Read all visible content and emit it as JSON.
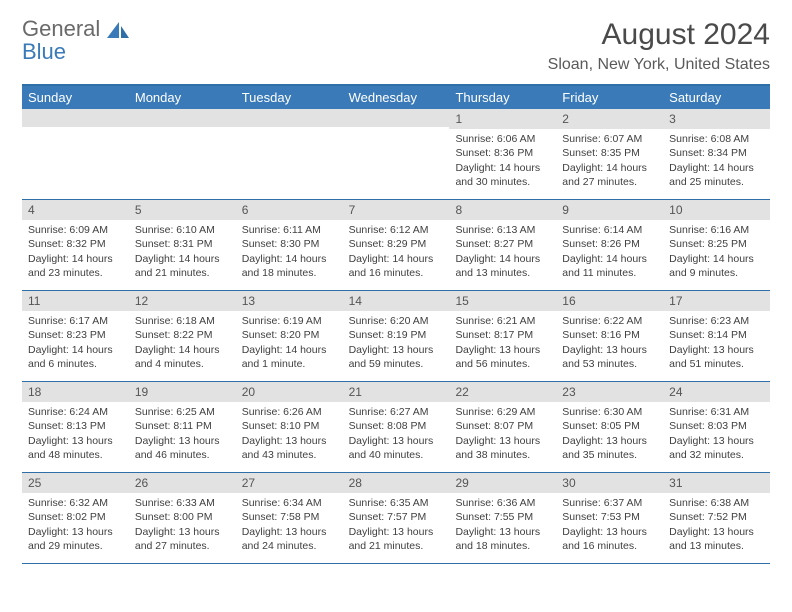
{
  "logo": {
    "general": "General",
    "blue": "Blue"
  },
  "title": "August 2024",
  "location": "Sloan, New York, United States",
  "colors": {
    "header_bg": "#3a7ab8",
    "header_text": "#ffffff",
    "border": "#2f6fa8",
    "daynum_bg": "#e2e2e2",
    "text": "#404040"
  },
  "day_headers": [
    "Sunday",
    "Monday",
    "Tuesday",
    "Wednesday",
    "Thursday",
    "Friday",
    "Saturday"
  ],
  "weeks": [
    [
      {
        "n": "",
        "sr": "",
        "ss": "",
        "dl": ""
      },
      {
        "n": "",
        "sr": "",
        "ss": "",
        "dl": ""
      },
      {
        "n": "",
        "sr": "",
        "ss": "",
        "dl": ""
      },
      {
        "n": "",
        "sr": "",
        "ss": "",
        "dl": ""
      },
      {
        "n": "1",
        "sr": "Sunrise: 6:06 AM",
        "ss": "Sunset: 8:36 PM",
        "dl": "Daylight: 14 hours and 30 minutes."
      },
      {
        "n": "2",
        "sr": "Sunrise: 6:07 AM",
        "ss": "Sunset: 8:35 PM",
        "dl": "Daylight: 14 hours and 27 minutes."
      },
      {
        "n": "3",
        "sr": "Sunrise: 6:08 AM",
        "ss": "Sunset: 8:34 PM",
        "dl": "Daylight: 14 hours and 25 minutes."
      }
    ],
    [
      {
        "n": "4",
        "sr": "Sunrise: 6:09 AM",
        "ss": "Sunset: 8:32 PM",
        "dl": "Daylight: 14 hours and 23 minutes."
      },
      {
        "n": "5",
        "sr": "Sunrise: 6:10 AM",
        "ss": "Sunset: 8:31 PM",
        "dl": "Daylight: 14 hours and 21 minutes."
      },
      {
        "n": "6",
        "sr": "Sunrise: 6:11 AM",
        "ss": "Sunset: 8:30 PM",
        "dl": "Daylight: 14 hours and 18 minutes."
      },
      {
        "n": "7",
        "sr": "Sunrise: 6:12 AM",
        "ss": "Sunset: 8:29 PM",
        "dl": "Daylight: 14 hours and 16 minutes."
      },
      {
        "n": "8",
        "sr": "Sunrise: 6:13 AM",
        "ss": "Sunset: 8:27 PM",
        "dl": "Daylight: 14 hours and 13 minutes."
      },
      {
        "n": "9",
        "sr": "Sunrise: 6:14 AM",
        "ss": "Sunset: 8:26 PM",
        "dl": "Daylight: 14 hours and 11 minutes."
      },
      {
        "n": "10",
        "sr": "Sunrise: 6:16 AM",
        "ss": "Sunset: 8:25 PM",
        "dl": "Daylight: 14 hours and 9 minutes."
      }
    ],
    [
      {
        "n": "11",
        "sr": "Sunrise: 6:17 AM",
        "ss": "Sunset: 8:23 PM",
        "dl": "Daylight: 14 hours and 6 minutes."
      },
      {
        "n": "12",
        "sr": "Sunrise: 6:18 AM",
        "ss": "Sunset: 8:22 PM",
        "dl": "Daylight: 14 hours and 4 minutes."
      },
      {
        "n": "13",
        "sr": "Sunrise: 6:19 AM",
        "ss": "Sunset: 8:20 PM",
        "dl": "Daylight: 14 hours and 1 minute."
      },
      {
        "n": "14",
        "sr": "Sunrise: 6:20 AM",
        "ss": "Sunset: 8:19 PM",
        "dl": "Daylight: 13 hours and 59 minutes."
      },
      {
        "n": "15",
        "sr": "Sunrise: 6:21 AM",
        "ss": "Sunset: 8:17 PM",
        "dl": "Daylight: 13 hours and 56 minutes."
      },
      {
        "n": "16",
        "sr": "Sunrise: 6:22 AM",
        "ss": "Sunset: 8:16 PM",
        "dl": "Daylight: 13 hours and 53 minutes."
      },
      {
        "n": "17",
        "sr": "Sunrise: 6:23 AM",
        "ss": "Sunset: 8:14 PM",
        "dl": "Daylight: 13 hours and 51 minutes."
      }
    ],
    [
      {
        "n": "18",
        "sr": "Sunrise: 6:24 AM",
        "ss": "Sunset: 8:13 PM",
        "dl": "Daylight: 13 hours and 48 minutes."
      },
      {
        "n": "19",
        "sr": "Sunrise: 6:25 AM",
        "ss": "Sunset: 8:11 PM",
        "dl": "Daylight: 13 hours and 46 minutes."
      },
      {
        "n": "20",
        "sr": "Sunrise: 6:26 AM",
        "ss": "Sunset: 8:10 PM",
        "dl": "Daylight: 13 hours and 43 minutes."
      },
      {
        "n": "21",
        "sr": "Sunrise: 6:27 AM",
        "ss": "Sunset: 8:08 PM",
        "dl": "Daylight: 13 hours and 40 minutes."
      },
      {
        "n": "22",
        "sr": "Sunrise: 6:29 AM",
        "ss": "Sunset: 8:07 PM",
        "dl": "Daylight: 13 hours and 38 minutes."
      },
      {
        "n": "23",
        "sr": "Sunrise: 6:30 AM",
        "ss": "Sunset: 8:05 PM",
        "dl": "Daylight: 13 hours and 35 minutes."
      },
      {
        "n": "24",
        "sr": "Sunrise: 6:31 AM",
        "ss": "Sunset: 8:03 PM",
        "dl": "Daylight: 13 hours and 32 minutes."
      }
    ],
    [
      {
        "n": "25",
        "sr": "Sunrise: 6:32 AM",
        "ss": "Sunset: 8:02 PM",
        "dl": "Daylight: 13 hours and 29 minutes."
      },
      {
        "n": "26",
        "sr": "Sunrise: 6:33 AM",
        "ss": "Sunset: 8:00 PM",
        "dl": "Daylight: 13 hours and 27 minutes."
      },
      {
        "n": "27",
        "sr": "Sunrise: 6:34 AM",
        "ss": "Sunset: 7:58 PM",
        "dl": "Daylight: 13 hours and 24 minutes."
      },
      {
        "n": "28",
        "sr": "Sunrise: 6:35 AM",
        "ss": "Sunset: 7:57 PM",
        "dl": "Daylight: 13 hours and 21 minutes."
      },
      {
        "n": "29",
        "sr": "Sunrise: 6:36 AM",
        "ss": "Sunset: 7:55 PM",
        "dl": "Daylight: 13 hours and 18 minutes."
      },
      {
        "n": "30",
        "sr": "Sunrise: 6:37 AM",
        "ss": "Sunset: 7:53 PM",
        "dl": "Daylight: 13 hours and 16 minutes."
      },
      {
        "n": "31",
        "sr": "Sunrise: 6:38 AM",
        "ss": "Sunset: 7:52 PM",
        "dl": "Daylight: 13 hours and 13 minutes."
      }
    ]
  ]
}
